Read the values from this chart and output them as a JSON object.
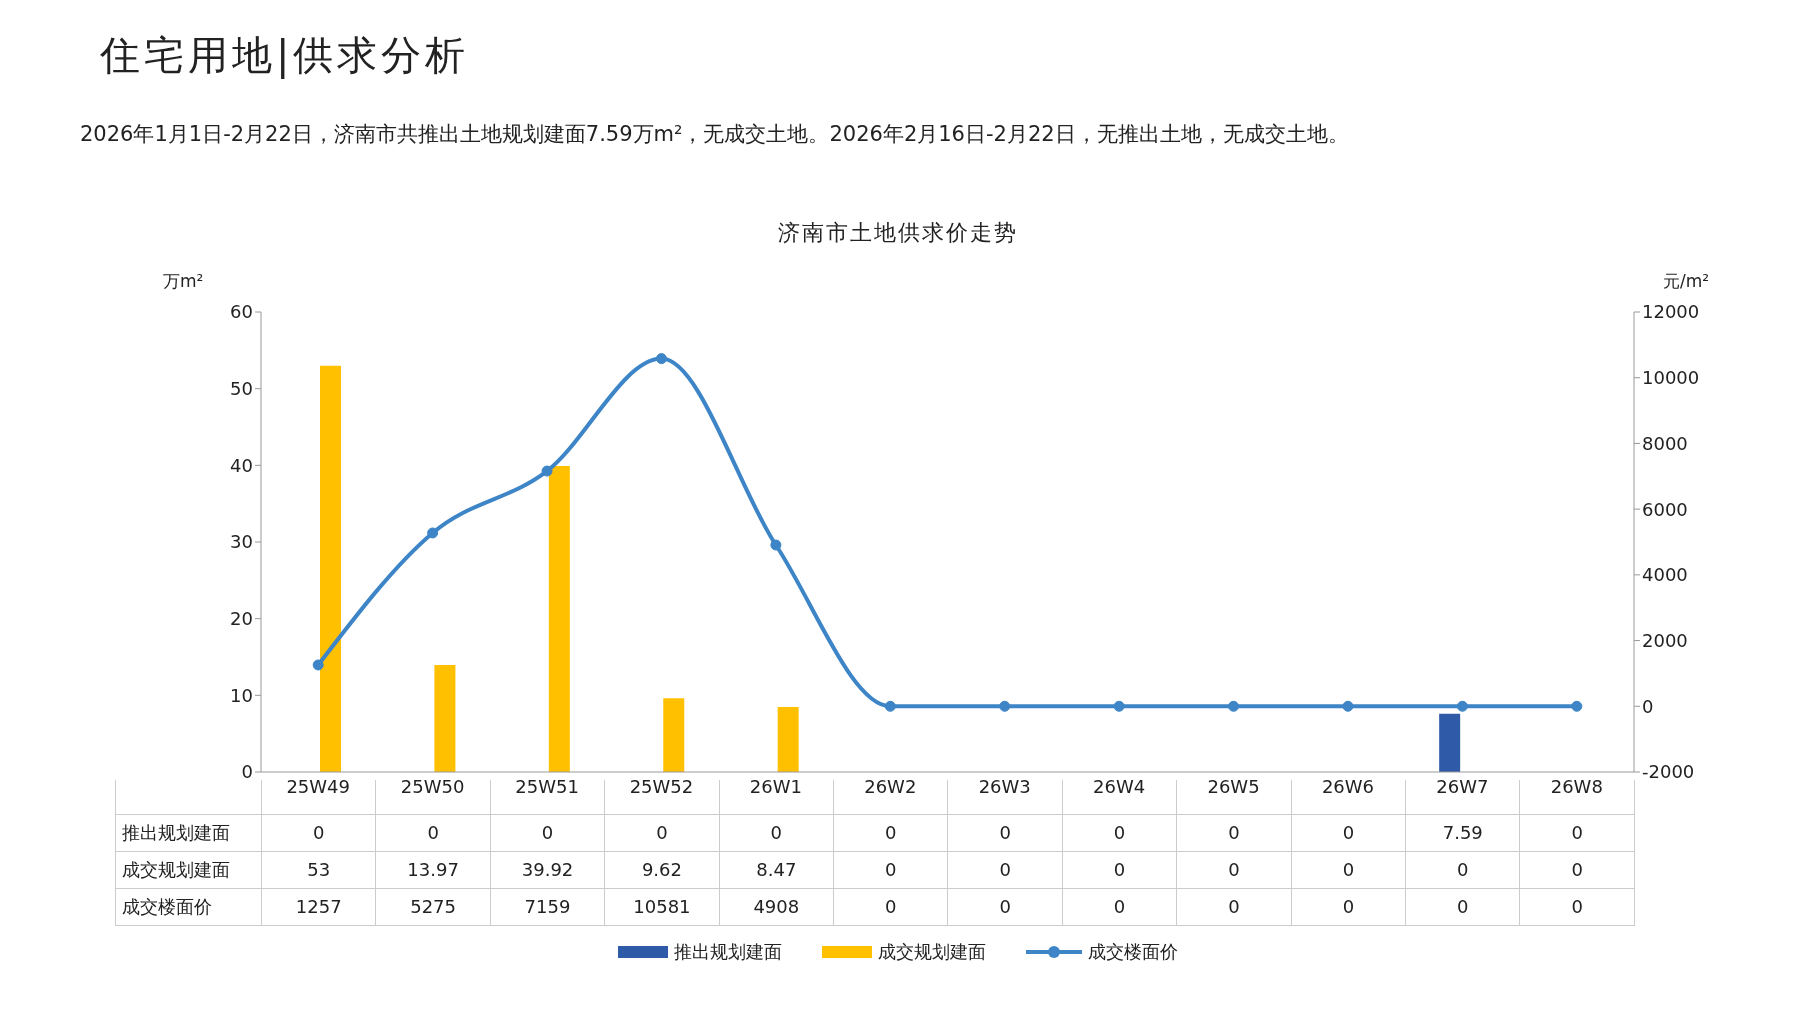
{
  "chart_data": {
    "type": "bar",
    "title": "住宅用地|供求分析",
    "subtitle": "2026年1月1日-2月22日，济南市共推出土地规划建面7.59万m²，无成交土地。2026年2月16日-2月22日，无推出土地，无成交土地。",
    "annotations": [
      "济南市土地供求价走势"
    ],
    "ylabel": "万m²",
    "y2label": "元/m²",
    "categories": [
      "25W49",
      "25W50",
      "25W51",
      "25W52",
      "26W1",
      "26W2",
      "26W3",
      "26W4",
      "26W5",
      "26W6",
      "26W7",
      "26W8"
    ],
    "series": [
      {
        "name": "推出规划建面",
        "color": "#2e5aa8",
        "values": [
          0,
          0,
          0,
          0,
          0,
          0,
          0,
          0,
          0,
          0,
          7.59,
          0
        ]
      },
      {
        "name": "成交规划建面",
        "color": "#ffc000",
        "values": [
          53,
          13.97,
          39.92,
          9.62,
          8.47,
          0,
          0,
          0,
          0,
          0,
          0,
          0
        ]
      },
      {
        "name": "成交楼面价",
        "type": "line",
        "axis": "y2",
        "color": "#3d85c6",
        "values": [
          1257,
          5275,
          7159,
          10581,
          4908,
          0,
          0,
          0,
          0,
          0,
          0,
          0
        ]
      }
    ],
    "ylim": [
      0,
      60
    ],
    "yticks": [
      0,
      10,
      20,
      30,
      40,
      50,
      60
    ],
    "y2lim": [
      -2000,
      12000
    ],
    "y2ticks": [
      -2000,
      0,
      2000,
      4000,
      6000,
      8000,
      10000,
      12000
    ],
    "data_labels": true,
    "legend": "bottom",
    "marker": "circle",
    "line_style": "solid"
  }
}
